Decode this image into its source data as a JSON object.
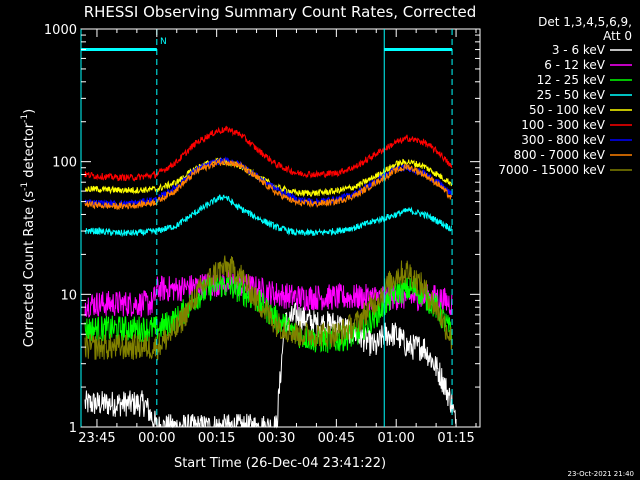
{
  "chart_data": {
    "type": "line",
    "title": "RHESSI Observing Summary Count Rates, Corrected",
    "xlabel": "Start Time (26-Dec-04 23:41:22)",
    "ylabel_main": "Corrected Count Rate (s",
    "ylabel_sup1": "-1",
    "ylabel_mid": " detector",
    "ylabel_sup2": "-1",
    "ylabel_end": ")",
    "yscale": "log",
    "ylim": [
      1,
      1000
    ],
    "xlim_minutes": [
      -4,
      96
    ],
    "x_ticks": [
      {
        "m": 0,
        "label": "23:45"
      },
      {
        "m": 15,
        "label": "00:00"
      },
      {
        "m": 30,
        "label": "00:15"
      },
      {
        "m": 45,
        "label": "00:30"
      },
      {
        "m": 60,
        "label": "00:45"
      },
      {
        "m": 75,
        "label": "01:00"
      },
      {
        "m": 90,
        "label": "01:15"
      }
    ],
    "y_ticks": [
      {
        "v": 1,
        "label": "1"
      },
      {
        "v": 10,
        "label": "10"
      },
      {
        "v": 100,
        "label": "100"
      },
      {
        "v": 1000,
        "label": "1000"
      }
    ],
    "x_unit": "minutes after 23:45",
    "legend_header": [
      "Det 1,3,4,5,6,9,",
      "Att 0"
    ],
    "legend_position": "right",
    "night_marker_label": "N",
    "markers_minutes": [
      -4,
      15,
      72,
      89
    ],
    "bars": [
      {
        "from": -4,
        "to": 15,
        "y": 700
      },
      {
        "from": 72,
        "to": 89,
        "y": 700
      }
    ],
    "series": [
      {
        "name": "3 - 6 keV",
        "color": "#ffffff",
        "points": [
          [
            -3,
            1.5
          ],
          [
            0,
            1.5
          ],
          [
            3,
            1.5
          ],
          [
            6,
            1.5
          ],
          [
            9,
            1.5
          ],
          [
            12,
            1.5
          ],
          [
            15,
            1.0
          ],
          [
            20,
            1.0
          ],
          [
            45,
            1.0
          ],
          [
            47,
            6
          ],
          [
            50,
            7
          ],
          [
            55,
            6
          ],
          [
            60,
            6
          ],
          [
            65,
            5
          ],
          [
            70,
            4
          ],
          [
            72,
            5
          ],
          [
            75,
            5
          ],
          [
            78,
            4
          ],
          [
            82,
            4
          ],
          [
            86,
            2.5
          ],
          [
            89,
            1.5
          ],
          [
            90,
            1.0
          ]
        ]
      },
      {
        "name": "6 - 12 keV",
        "color": "#ff00ff",
        "points": [
          [
            -3,
            8.5
          ],
          [
            0,
            8.5
          ],
          [
            5,
            8.5
          ],
          [
            10,
            8.5
          ],
          [
            14,
            8.5
          ],
          [
            15,
            11
          ],
          [
            20,
            11
          ],
          [
            25,
            11.5
          ],
          [
            30,
            12
          ],
          [
            35,
            12
          ],
          [
            40,
            11
          ],
          [
            45,
            10
          ],
          [
            50,
            9.5
          ],
          [
            55,
            9.5
          ],
          [
            60,
            9.5
          ],
          [
            65,
            9.5
          ],
          [
            70,
            9.5
          ],
          [
            75,
            9.5
          ],
          [
            80,
            9.5
          ],
          [
            85,
            9.5
          ],
          [
            89,
            8.5
          ]
        ]
      },
      {
        "name": "12 - 25 keV",
        "color": "#00ff00",
        "points": [
          [
            -3,
            5.5
          ],
          [
            0,
            5.5
          ],
          [
            5,
            5.5
          ],
          [
            10,
            5.5
          ],
          [
            15,
            5.5
          ],
          [
            20,
            6.5
          ],
          [
            25,
            9.5
          ],
          [
            30,
            12
          ],
          [
            35,
            11
          ],
          [
            40,
            9
          ],
          [
            45,
            6.5
          ],
          [
            50,
            5
          ],
          [
            55,
            4.5
          ],
          [
            60,
            4.5
          ],
          [
            65,
            5
          ],
          [
            70,
            7
          ],
          [
            75,
            10.5
          ],
          [
            80,
            11
          ],
          [
            85,
            8
          ],
          [
            89,
            5
          ]
        ]
      },
      {
        "name": "25 - 50 keV",
        "color": "#00ffff",
        "points": [
          [
            -3,
            30
          ],
          [
            0,
            30
          ],
          [
            5,
            29
          ],
          [
            10,
            29
          ],
          [
            15,
            30
          ],
          [
            20,
            33
          ],
          [
            25,
            42
          ],
          [
            30,
            52
          ],
          [
            32,
            55
          ],
          [
            35,
            46
          ],
          [
            40,
            38
          ],
          [
            45,
            32
          ],
          [
            50,
            29
          ],
          [
            55,
            29
          ],
          [
            60,
            30
          ],
          [
            65,
            32
          ],
          [
            70,
            36
          ],
          [
            75,
            40
          ],
          [
            78,
            43
          ],
          [
            82,
            40
          ],
          [
            86,
            35
          ],
          [
            89,
            31
          ]
        ]
      },
      {
        "name": "50 - 100 keV",
        "color": "#ffff00",
        "points": [
          [
            -3,
            62
          ],
          [
            0,
            62
          ],
          [
            5,
            61
          ],
          [
            10,
            61
          ],
          [
            15,
            62
          ],
          [
            20,
            70
          ],
          [
            25,
            90
          ],
          [
            30,
            102
          ],
          [
            35,
            95
          ],
          [
            40,
            78
          ],
          [
            45,
            64
          ],
          [
            50,
            58
          ],
          [
            55,
            58
          ],
          [
            60,
            60
          ],
          [
            65,
            65
          ],
          [
            70,
            78
          ],
          [
            75,
            96
          ],
          [
            78,
            100
          ],
          [
            82,
            92
          ],
          [
            86,
            78
          ],
          [
            89,
            68
          ]
        ]
      },
      {
        "name": "100 - 300 keV",
        "color": "#ff0000",
        "points": [
          [
            -3,
            80
          ],
          [
            0,
            78
          ],
          [
            5,
            76
          ],
          [
            10,
            76
          ],
          [
            15,
            80
          ],
          [
            20,
            100
          ],
          [
            25,
            140
          ],
          [
            30,
            170
          ],
          [
            33,
            175
          ],
          [
            36,
            160
          ],
          [
            40,
            125
          ],
          [
            45,
            95
          ],
          [
            50,
            82
          ],
          [
            55,
            80
          ],
          [
            60,
            82
          ],
          [
            65,
            92
          ],
          [
            70,
            115
          ],
          [
            75,
            140
          ],
          [
            78,
            150
          ],
          [
            82,
            140
          ],
          [
            86,
            115
          ],
          [
            89,
            90
          ]
        ]
      },
      {
        "name": "300 - 800 keV",
        "color": "#0000ff",
        "points": [
          [
            -3,
            50
          ],
          [
            0,
            49
          ],
          [
            5,
            48
          ],
          [
            10,
            49
          ],
          [
            15,
            52
          ],
          [
            20,
            65
          ],
          [
            25,
            88
          ],
          [
            30,
            100
          ],
          [
            33,
            102
          ],
          [
            36,
            95
          ],
          [
            40,
            78
          ],
          [
            45,
            62
          ],
          [
            50,
            52
          ],
          [
            55,
            50
          ],
          [
            60,
            52
          ],
          [
            65,
            58
          ],
          [
            70,
            72
          ],
          [
            75,
            88
          ],
          [
            78,
            90
          ],
          [
            82,
            82
          ],
          [
            86,
            68
          ],
          [
            89,
            56
          ]
        ]
      },
      {
        "name": "800 - 7000 keV",
        "color": "#ff8000",
        "points": [
          [
            -3,
            48
          ],
          [
            0,
            47
          ],
          [
            5,
            46
          ],
          [
            10,
            47
          ],
          [
            15,
            50
          ],
          [
            20,
            62
          ],
          [
            25,
            85
          ],
          [
            30,
            98
          ],
          [
            33,
            100
          ],
          [
            36,
            93
          ],
          [
            40,
            76
          ],
          [
            45,
            58
          ],
          [
            50,
            49
          ],
          [
            55,
            48
          ],
          [
            60,
            50
          ],
          [
            65,
            56
          ],
          [
            70,
            70
          ],
          [
            75,
            86
          ],
          [
            78,
            92
          ],
          [
            82,
            80
          ],
          [
            86,
            66
          ],
          [
            89,
            52
          ]
        ]
      },
      {
        "name": "7000 - 15000 keV",
        "color": "#808000",
        "points": [
          [
            -3,
            4
          ],
          [
            0,
            4
          ],
          [
            5,
            4
          ],
          [
            10,
            4
          ],
          [
            15,
            4
          ],
          [
            20,
            5.5
          ],
          [
            25,
            10
          ],
          [
            30,
            15
          ],
          [
            33,
            16
          ],
          [
            36,
            14
          ],
          [
            40,
            9
          ],
          [
            45,
            6
          ],
          [
            50,
            5
          ],
          [
            55,
            5
          ],
          [
            60,
            5
          ],
          [
            65,
            6
          ],
          [
            70,
            9
          ],
          [
            75,
            14
          ],
          [
            78,
            15
          ],
          [
            82,
            11
          ],
          [
            86,
            7
          ],
          [
            89,
            4.5
          ]
        ]
      }
    ]
  },
  "footer": {
    "timestamp": "23-Oct-2021 21:40"
  }
}
